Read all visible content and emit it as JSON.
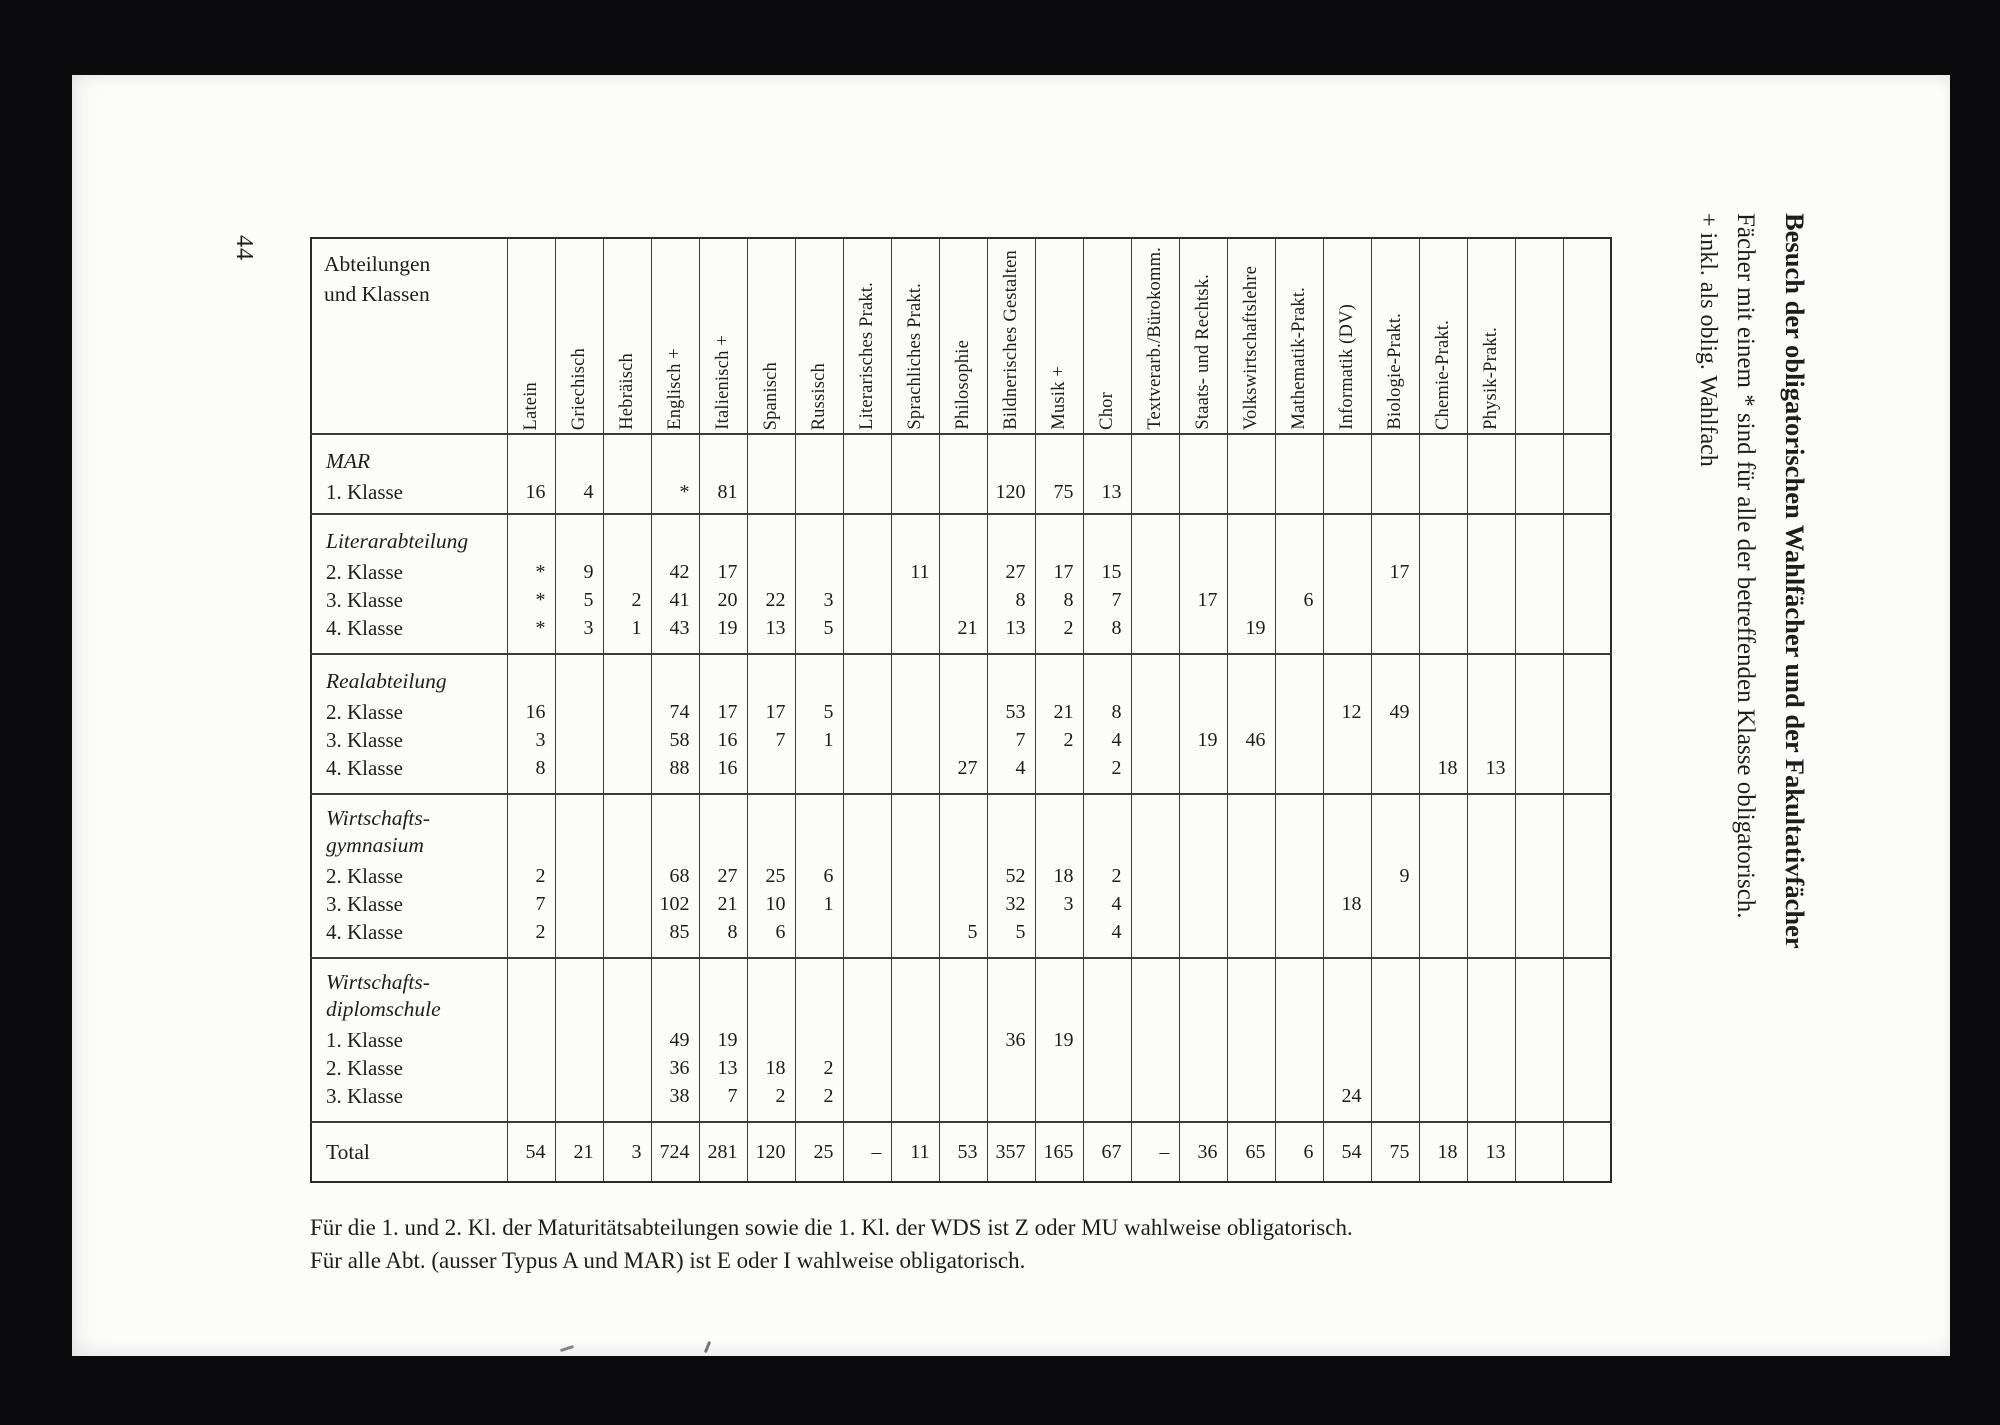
{
  "colors": {
    "background": "#0b0b0d",
    "paper": "#fcfcfa",
    "ink": "#1d1d1d",
    "line": "#3a3a3a"
  },
  "page": {
    "number": "44"
  },
  "margin_title": {
    "title": "Besuch der obligatorischen Wahlfächer und der Fakultativfächer",
    "note_star": "Fächer mit einem * sind für alle der betreffenden Klasse obligatorisch.",
    "note_plus": "+ inkl. als oblig. Wahlfach"
  },
  "table": {
    "corner_lines": [
      "Abteilungen",
      "und Klassen"
    ],
    "columns": [
      "Latein",
      "Griechisch",
      "Hebräisch",
      "Englisch +",
      "Italienisch +",
      "Spanisch",
      "Russisch",
      "Literarisches Prakt.",
      "Sprachliches Prakt.",
      "Philosophie",
      "Bildnerisches Gestalten",
      "Musik +",
      "Chor",
      "Textverarb./Bürokomm.",
      "Staats- und Rechtsk.",
      "Volkswirtschaftslehre",
      "Mathematik-Prakt.",
      "Informatik (DV)",
      "Biologie-Prakt.",
      "Chemie-Prakt.",
      "Physik-Prakt."
    ],
    "empty_trailing_columns": 2,
    "sections": [
      {
        "name_lines": [
          "MAR"
        ],
        "rows": [
          {
            "label": "1. Klasse",
            "values": [
              "16",
              "4",
              "",
              "*",
              "81",
              "",
              "",
              "",
              "",
              "",
              "120",
              "75",
              "13",
              "",
              "",
              "",
              "",
              "",
              "",
              "",
              ""
            ]
          }
        ]
      },
      {
        "name_lines": [
          "Literarabteilung"
        ],
        "rows": [
          {
            "label": "2. Klasse",
            "values": [
              "*",
              "9",
              "",
              "42",
              "17",
              "",
              "",
              "",
              "11",
              "",
              "27",
              "17",
              "15",
              "",
              "",
              "",
              "",
              "",
              "17",
              "",
              ""
            ]
          },
          {
            "label": "3. Klasse",
            "values": [
              "*",
              "5",
              "2",
              "41",
              "20",
              "22",
              "3",
              "",
              "",
              "",
              "8",
              "8",
              "7",
              "",
              "17",
              "",
              "6",
              "",
              "",
              "",
              ""
            ]
          },
          {
            "label": "4. Klasse",
            "values": [
              "*",
              "3",
              "1",
              "43",
              "19",
              "13",
              "5",
              "",
              "",
              "21",
              "13",
              "2",
              "8",
              "",
              "",
              "19",
              "",
              "",
              "",
              "",
              ""
            ]
          }
        ]
      },
      {
        "name_lines": [
          "Realabteilung"
        ],
        "rows": [
          {
            "label": "2. Klasse",
            "values": [
              "16",
              "",
              "",
              "74",
              "17",
              "17",
              "5",
              "",
              "",
              "",
              "53",
              "21",
              "8",
              "",
              "",
              "",
              "",
              "12",
              "49",
              "",
              ""
            ]
          },
          {
            "label": "3. Klasse",
            "values": [
              "3",
              "",
              "",
              "58",
              "16",
              "7",
              "1",
              "",
              "",
              "",
              "7",
              "2",
              "4",
              "",
              "19",
              "46",
              "",
              "",
              "",
              "",
              ""
            ]
          },
          {
            "label": "4. Klasse",
            "values": [
              "8",
              "",
              "",
              "88",
              "16",
              "",
              "",
              "",
              "",
              "27",
              "4",
              "",
              "2",
              "",
              "",
              "",
              "",
              "",
              "",
              "18",
              "13"
            ]
          }
        ]
      },
      {
        "name_lines": [
          "Wirtschafts-",
          "gymnasium"
        ],
        "rows": [
          {
            "label": "2. Klasse",
            "values": [
              "2",
              "",
              "",
              "68",
              "27",
              "25",
              "6",
              "",
              "",
              "",
              "52",
              "18",
              "2",
              "",
              "",
              "",
              "",
              "",
              "9",
              "",
              ""
            ]
          },
          {
            "label": "3. Klasse",
            "values": [
              "7",
              "",
              "",
              "102",
              "21",
              "10",
              "1",
              "",
              "",
              "",
              "32",
              "3",
              "4",
              "",
              "",
              "",
              "",
              "18",
              "",
              "",
              ""
            ]
          },
          {
            "label": "4. Klasse",
            "values": [
              "2",
              "",
              "",
              "85",
              "8",
              "6",
              "",
              "",
              "",
              "5",
              "5",
              "",
              "4",
              "",
              "",
              "",
              "",
              "",
              "",
              "",
              ""
            ]
          }
        ]
      },
      {
        "name_lines": [
          "Wirtschafts-",
          "diplomschule"
        ],
        "rows": [
          {
            "label": "1. Klasse",
            "values": [
              "",
              "",
              "",
              "49",
              "19",
              "",
              "",
              "",
              "",
              "",
              "36",
              "19",
              "",
              "",
              "",
              "",
              "",
              "",
              "",
              "",
              ""
            ]
          },
          {
            "label": "2. Klasse",
            "values": [
              "",
              "",
              "",
              "36",
              "13",
              "18",
              "2",
              "",
              "",
              "",
              "",
              "",
              "",
              "",
              "",
              "",
              "",
              "",
              "",
              "",
              ""
            ]
          },
          {
            "label": "3. Klasse",
            "values": [
              "",
              "",
              "",
              "38",
              "7",
              "2",
              "2",
              "",
              "",
              "",
              "",
              "",
              "",
              "",
              "",
              "",
              "",
              "24",
              "",
              "",
              ""
            ]
          }
        ]
      }
    ],
    "total": {
      "label": "Total",
      "values": [
        "54",
        "21",
        "3",
        "724",
        "281",
        "120",
        "25",
        "–",
        "11",
        "53",
        "357",
        "165",
        "67",
        "–",
        "36",
        "65",
        "6",
        "54",
        "75",
        "18",
        "13"
      ]
    }
  },
  "footnotes": [
    "Für die 1. und 2. Kl. der Maturitätsabteilungen sowie die 1. Kl. der WDS ist Z oder MU wahlweise obligatorisch.",
    "Für alle Abt. (ausser Typus A und MAR) ist E oder I wahlweise obligatorisch."
  ]
}
